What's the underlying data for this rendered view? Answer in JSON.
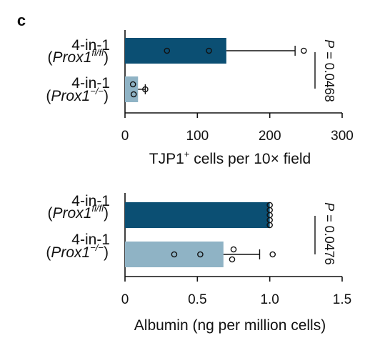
{
  "panel_mark": "c",
  "chart_data": [
    {
      "type": "bar",
      "orientation": "horizontal",
      "categories": [
        {
          "line1": "4-in-1",
          "open": "(",
          "gene": "Prox1",
          "sup": "fl/fl",
          "close": ")"
        },
        {
          "line1": "4-in-1",
          "open": "(",
          "gene": "Prox1",
          "sup": "−/−",
          "close": ")"
        }
      ],
      "values": [
        140,
        18
      ],
      "errors": [
        95,
        10
      ],
      "points": [
        [
          58,
          116,
          247
        ],
        [
          11,
          12,
          28
        ]
      ],
      "bar_colors": [
        "#0b4f73",
        "#8fb3c5"
      ],
      "xlim": [
        0,
        300
      ],
      "xticks": [
        0,
        100,
        200,
        300
      ],
      "xtick_labels": [
        "0",
        "100",
        "200",
        "300"
      ],
      "xlabel": {
        "pre": "TJP1",
        "sup": "+",
        "post": " cells per 10× field"
      },
      "annotation": "P = 0.0468"
    },
    {
      "type": "bar",
      "orientation": "horizontal",
      "categories": [
        {
          "line1": "4-in-1",
          "open": "(",
          "gene": "Prox1",
          "sup": "fl/fl",
          "close": ")"
        },
        {
          "line1": "4-in-1",
          "open": "(",
          "gene": "Prox1",
          "sup": "−/−",
          "close": ")"
        }
      ],
      "values": [
        1.0,
        0.68
      ],
      "errors": [
        0,
        0.25
      ],
      "points": [
        [
          1.0,
          1.0,
          1.0,
          1.0,
          1.0
        ],
        [
          0.34,
          0.52,
          0.75,
          0.74,
          1.02
        ]
      ],
      "bar_colors": [
        "#0b4f73",
        "#8fb3c5"
      ],
      "xlim": [
        0,
        1.5
      ],
      "xticks": [
        0,
        0.5,
        1.0,
        1.5
      ],
      "xtick_labels": [
        "0",
        "0.5",
        "1.0",
        "1.5"
      ],
      "xlabel": {
        "pre": "Albumin (ng per million cells)",
        "sup": "",
        "post": ""
      },
      "annotation": "P = 0.0476"
    }
  ]
}
